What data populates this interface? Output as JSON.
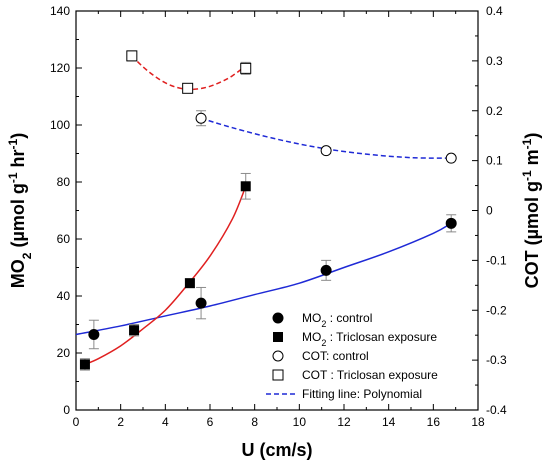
{
  "chart_data": {
    "type": "scatter",
    "x_label": "U (cm/s)",
    "y_left_label": {
      "base": "MO",
      "sub": "2",
      "rest_a": " (µmol g",
      "sup1": "-1",
      "rest_b": " hr",
      "sup2": "-1",
      "rest_c": ")"
    },
    "y_right_label": {
      "base": "COT (µmol g",
      "sup1": "-1",
      "rest_b": " m",
      "sup2": "-1",
      "rest_c": ")"
    },
    "x_axis": {
      "min": 0,
      "max": 18,
      "ticks": [
        0,
        2,
        4,
        6,
        8,
        10,
        12,
        14,
        16,
        18
      ]
    },
    "y_left_axis": {
      "min": 0,
      "max": 140,
      "ticks": [
        0,
        20,
        40,
        60,
        80,
        100,
        120,
        140
      ]
    },
    "y_right_axis": {
      "min": -0.4,
      "max": 0.4,
      "ticks": [
        -0.4,
        -0.3,
        -0.2,
        -0.1,
        0,
        0.1,
        0.2,
        0.3,
        0.4
      ]
    },
    "series": [
      {
        "name": "MO2 : control",
        "axis": "left",
        "marker": "filled-circle",
        "points": [
          {
            "x": 0.8,
            "y": 26.5,
            "err": 5
          },
          {
            "x": 5.6,
            "y": 37.5,
            "err": 5.5
          },
          {
            "x": 11.2,
            "y": 49,
            "err": 3.5
          },
          {
            "x": 16.8,
            "y": 65.5,
            "err": 3
          }
        ],
        "fit": {
          "color": "#1f2ad6",
          "style": "solid",
          "points": [
            [
              0,
              26.5
            ],
            [
              2,
              29.5
            ],
            [
              4,
              33
            ],
            [
              6,
              36.5
            ],
            [
              8,
              40.5
            ],
            [
              10,
              44.5
            ],
            [
              12,
              50
            ],
            [
              14,
              55.5
            ],
            [
              16,
              62
            ],
            [
              16.8,
              65.5
            ]
          ]
        }
      },
      {
        "name": "MO2 : Triclosan exposure",
        "axis": "left",
        "marker": "filled-square",
        "points": [
          {
            "x": 0.4,
            "y": 16,
            "err": 2
          },
          {
            "x": 2.6,
            "y": 28,
            "err": 2
          },
          {
            "x": 5.1,
            "y": 44.5,
            "err": 1.5
          },
          {
            "x": 7.6,
            "y": 78.5,
            "err": 4.5
          }
        ],
        "fit": {
          "color": "#e02020",
          "style": "solid",
          "points": [
            [
              0.4,
              16
            ],
            [
              1,
              18
            ],
            [
              2,
              22.5
            ],
            [
              3,
              28.5
            ],
            [
              4,
              35
            ],
            [
              5,
              44
            ],
            [
              6,
              54
            ],
            [
              7,
              67
            ],
            [
              7.6,
              78.5
            ]
          ]
        }
      },
      {
        "name": "COT: control",
        "axis": "right",
        "marker": "open-circle",
        "points": [
          {
            "x": 5.6,
            "y": 0.185,
            "err": 0.015
          },
          {
            "x": 11.2,
            "y": 0.12,
            "err": 0.006
          },
          {
            "x": 16.8,
            "y": 0.105,
            "err": 0.003
          }
        ],
        "fit": {
          "color": "#1f2ad6",
          "style": "dashed",
          "points": [
            [
              5.6,
              0.185
            ],
            [
              7,
              0.166
            ],
            [
              9,
              0.143
            ],
            [
              11,
              0.125
            ],
            [
              13,
              0.113
            ],
            [
              15,
              0.106
            ],
            [
              16.8,
              0.105
            ]
          ]
        }
      },
      {
        "name": "COT : Triclosan exposure",
        "axis": "right",
        "marker": "open-square",
        "points": [
          {
            "x": 2.5,
            "y": 0.31,
            "err": 0.01
          },
          {
            "x": 5.0,
            "y": 0.245,
            "err": 0.005
          },
          {
            "x": 7.6,
            "y": 0.285,
            "err": 0.012
          }
        ],
        "fit": {
          "color": "#e02020",
          "style": "dashed",
          "points": [
            [
              2.5,
              0.31
            ],
            [
              3,
              0.288
            ],
            [
              3.5,
              0.27
            ],
            [
              4,
              0.256
            ],
            [
              4.5,
              0.247
            ],
            [
              5,
              0.243
            ],
            [
              5.5,
              0.244
            ],
            [
              6,
              0.249
            ],
            [
              6.5,
              0.258
            ],
            [
              7,
              0.27
            ],
            [
              7.6,
              0.29
            ]
          ]
        }
      }
    ],
    "legend": {
      "placement": "bottom-right",
      "entries": [
        {
          "marker": "filled-circle",
          "label_main": "MO",
          "label_sub": "2",
          "label_rest": " : control"
        },
        {
          "marker": "filled-square",
          "label_main": "MO",
          "label_sub": "2",
          "label_rest": " : Triclosan exposure"
        },
        {
          "marker": "open-circle",
          "label_main": "COT: control",
          "label_sub": "",
          "label_rest": ""
        },
        {
          "marker": "open-square",
          "label_main": "COT : Triclosan exposure",
          "label_sub": "",
          "label_rest": ""
        },
        {
          "marker": "dashed-line",
          "label_main": "Fitting line: Polynomial",
          "label_sub": "",
          "label_rest": ""
        }
      ]
    },
    "colors": {
      "blue": "#1f2ad6",
      "red": "#e02020",
      "error_bar": "#8a8a8a",
      "axis": "#000000"
    }
  }
}
